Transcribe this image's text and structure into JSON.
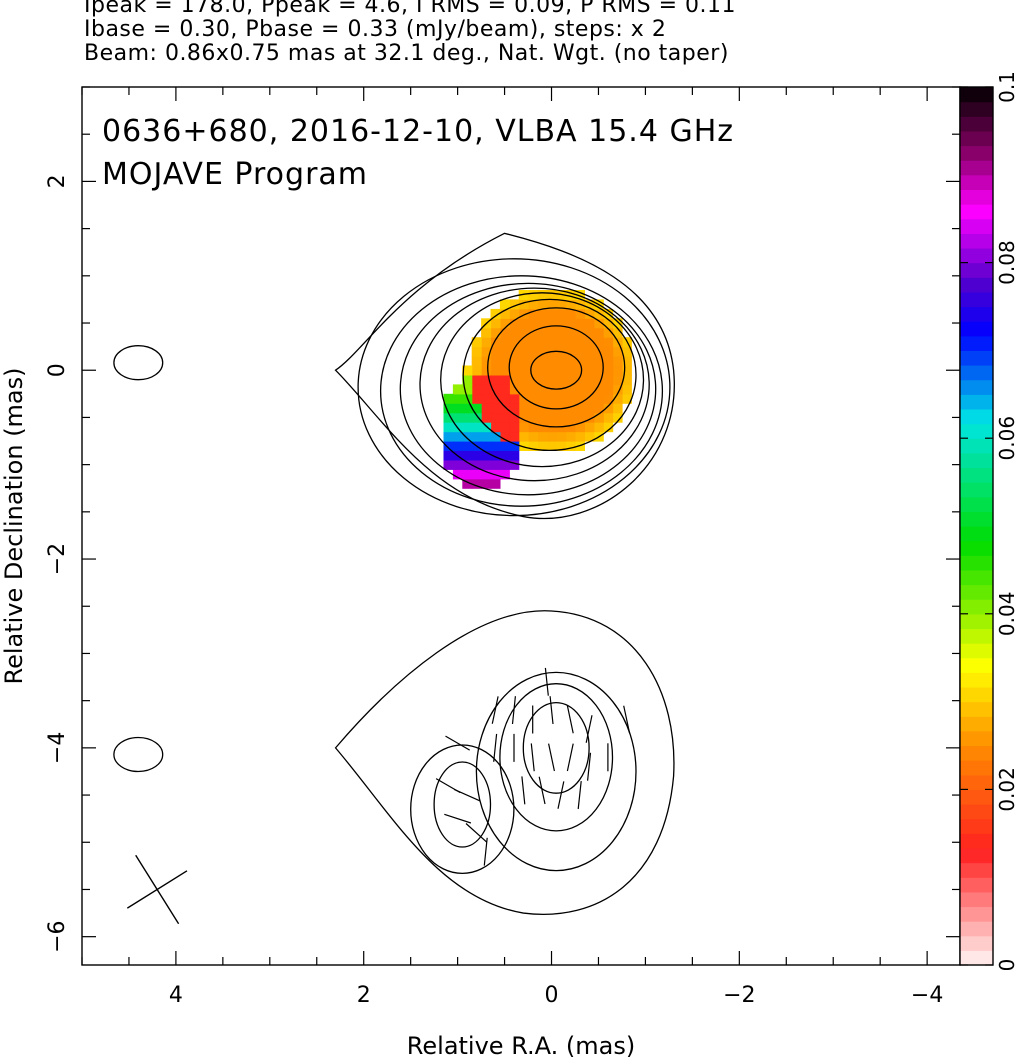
{
  "header": {
    "line1": "Ipeak = 178.0, Ppeak = 4.6, I RMS = 0.09, P RMS = 0.11",
    "line2": "Ibase = 0.30, Pbase = 0.33 (mJy/beam), steps: x 2",
    "line3": "Beam: 0.86x0.75 mas at 32.1 deg., Nat. Wgt. (no taper)"
  },
  "title": {
    "source_line": "0636+680, 2016-12-10, VLBA 15.4 GHz",
    "program_line": "MOJAVE Program"
  },
  "chart_data": {
    "type": "heatmap",
    "description_type": "contour map with fractional polarization color overlay",
    "xlabel": "Relative R.A. (mas)",
    "ylabel": "Relative Declination (mas)",
    "xlim": [
      5.0,
      -4.35
    ],
    "ylim": [
      -6.3,
      3.0
    ],
    "x_ticks": [
      4,
      2,
      0,
      -2,
      -4
    ],
    "x_tick_labels": [
      "4",
      "2",
      "0",
      "−2",
      "−4"
    ],
    "y_ticks": [
      2,
      0,
      -2,
      -4,
      -6
    ],
    "y_tick_labels": [
      "2",
      "0",
      "−2",
      "−4",
      "−6"
    ],
    "grid": false,
    "colorbar": {
      "min": 0,
      "max": 0.1,
      "ticks": [
        0,
        0.02,
        0.04,
        0.06,
        0.08,
        0.1
      ],
      "tick_labels": [
        "0",
        "0.02",
        "0.04",
        "0.06",
        "0.08",
        "0.1"
      ],
      "stops": [
        {
          "v": 0.0,
          "c": "#fff5f5"
        },
        {
          "v": 0.013,
          "c": "#ff2020"
        },
        {
          "v": 0.025,
          "c": "#ff8c00"
        },
        {
          "v": 0.034,
          "c": "#ffff00"
        },
        {
          "v": 0.048,
          "c": "#00dd00"
        },
        {
          "v": 0.062,
          "c": "#00e5e5"
        },
        {
          "v": 0.072,
          "c": "#0000ff"
        },
        {
          "v": 0.078,
          "c": "#5500cc"
        },
        {
          "v": 0.086,
          "c": "#ff00ff"
        },
        {
          "v": 0.093,
          "c": "#800060"
        },
        {
          "v": 0.1,
          "c": "#000000"
        }
      ]
    },
    "upper_component": {
      "center": [
        0.0,
        0.0
      ],
      "contours": [
        {
          "cx": -0.05,
          "cy": 0.0,
          "rx": 0.27,
          "ry": 0.2
        },
        {
          "cx": -0.05,
          "cy": 0.03,
          "rx": 0.5,
          "ry": 0.44
        },
        {
          "cx": -0.05,
          "cy": 0.03,
          "rx": 0.73,
          "ry": 0.63
        },
        {
          "cx": 0.02,
          "cy": -0.05,
          "rx": 0.92,
          "ry": 0.8
        },
        {
          "cx": 0.1,
          "cy": -0.1,
          "rx": 1.08,
          "ry": 0.92
        },
        {
          "cx": 0.18,
          "cy": -0.15,
          "rx": 1.22,
          "ry": 1.02
        },
        {
          "cx": 0.25,
          "cy": -0.2,
          "rx": 1.36,
          "ry": 1.12
        },
        {
          "cx": 0.32,
          "cy": -0.22,
          "rx": 1.5,
          "ry": 1.22
        },
        {
          "cx": 0.4,
          "cy": -0.18,
          "rx": 1.66,
          "ry": 1.36
        }
      ],
      "polarization_fraction_core": 0.025,
      "polarization_fraction_edge": 0.085
    },
    "lower_component": {
      "contours": [
        {
          "cx": -0.05,
          "cy": -4.0,
          "rx": 0.35,
          "ry": 0.48
        },
        {
          "cx": -0.05,
          "cy": -4.1,
          "rx": 0.6,
          "ry": 0.78
        },
        {
          "cx": -0.05,
          "cy": -4.25,
          "rx": 0.85,
          "ry": 1.05
        },
        {
          "cx": 0.95,
          "cy": -4.6,
          "rx": 0.3,
          "ry": 0.45
        },
        {
          "cx": 0.95,
          "cy": -4.65,
          "rx": 0.55,
          "ry": 0.68
        }
      ]
    },
    "noise_contours": [
      {
        "cx": 4.4,
        "cy": 0.08,
        "rx": 0.26,
        "ry": 0.18
      },
      {
        "cx": 4.4,
        "cy": -4.07,
        "rx": 0.26,
        "ry": 0.18
      }
    ],
    "beam": {
      "major_mas": 0.86,
      "minor_mas": 0.75,
      "pa_deg": 32.1,
      "center": [
        4.2,
        -5.5
      ]
    }
  }
}
